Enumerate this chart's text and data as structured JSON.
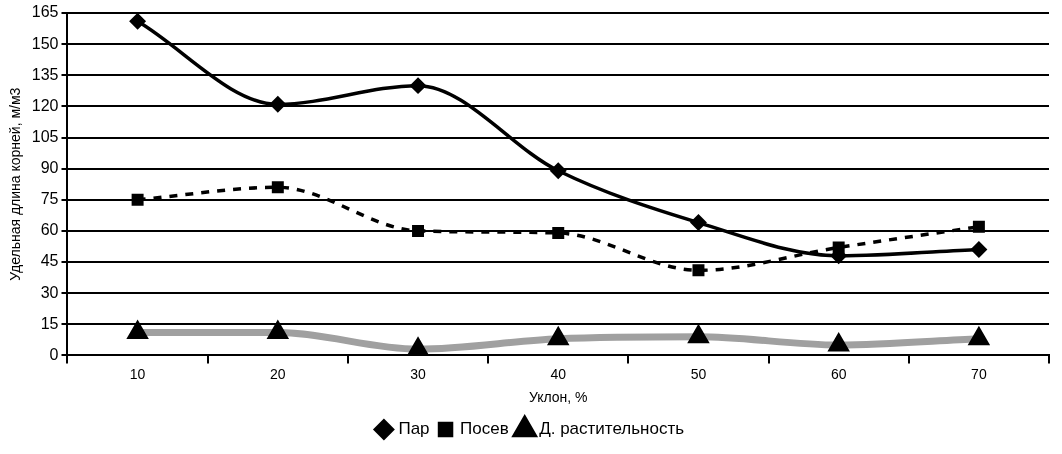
{
  "chart_data": {
    "type": "line",
    "xlabel": "Уклон, %",
    "ylabel": "Удельная длина корней, м/м3",
    "categories": [
      "10",
      "20",
      "30",
      "40",
      "50",
      "60",
      "70"
    ],
    "series": [
      {
        "name": "Пар",
        "color": "#000000",
        "marker": "diamond",
        "line_style": "solid",
        "values": [
          161,
          121,
          130,
          89,
          64,
          48,
          51
        ]
      },
      {
        "name": "Посев",
        "color": "#000000",
        "marker": "square",
        "line_style": "dashed",
        "values": [
          75,
          81,
          60,
          59,
          41,
          52,
          62
        ]
      },
      {
        "name": "Д. растительность",
        "color": "#a0a0a0",
        "marker": "triangle",
        "line_style": "solid",
        "values": [
          11,
          11,
          3,
          8,
          9,
          5,
          8
        ]
      }
    ],
    "ylim": [
      0,
      165
    ],
    "yticks": [
      0,
      15,
      30,
      45,
      60,
      75,
      90,
      105,
      120,
      135,
      150,
      165
    ],
    "grid": "y",
    "legend": "bottom"
  }
}
